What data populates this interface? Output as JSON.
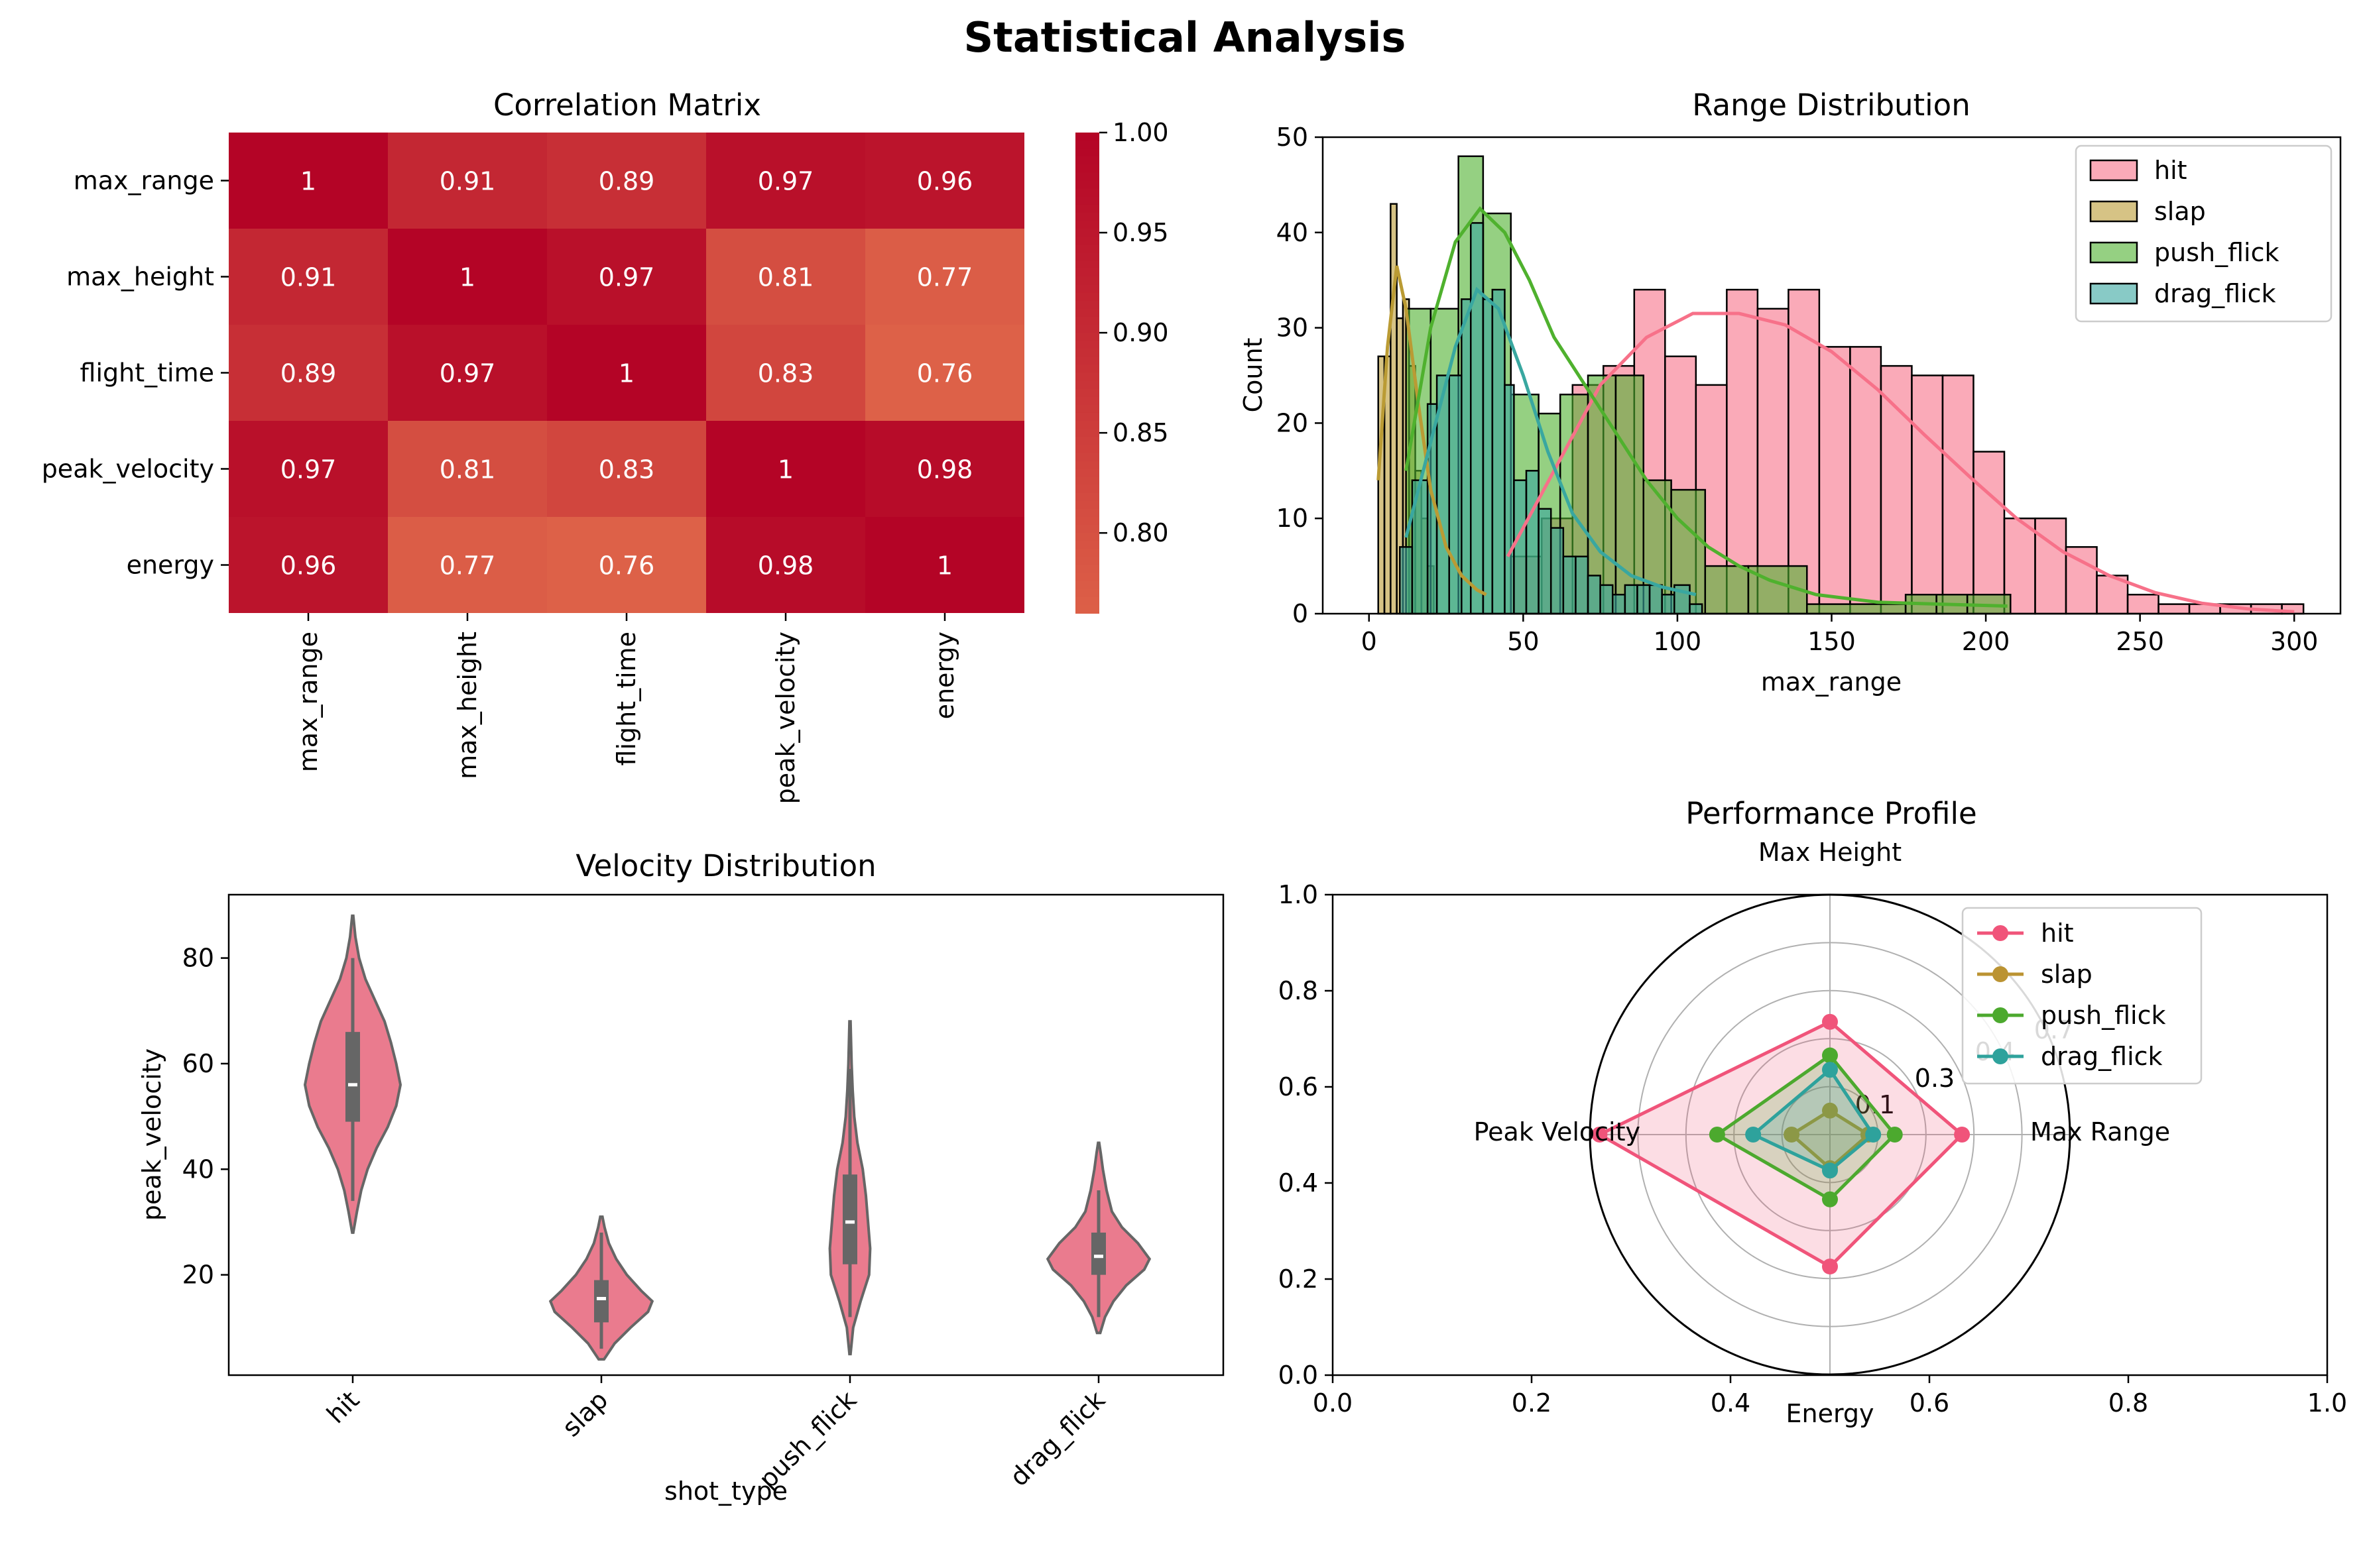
{
  "figure": {
    "suptitle": "Statistical Analysis"
  },
  "chart_data": [
    {
      "type": "heatmap",
      "title": "Correlation Matrix",
      "rows": [
        "max_range",
        "max_height",
        "flight_time",
        "peak_velocity",
        "energy"
      ],
      "cols": [
        "max_range",
        "max_height",
        "flight_time",
        "peak_velocity",
        "energy"
      ],
      "values": [
        [
          1,
          0.91,
          0.89,
          0.97,
          0.96
        ],
        [
          0.91,
          1,
          0.97,
          0.81,
          0.77
        ],
        [
          0.89,
          0.97,
          1,
          0.83,
          0.76
        ],
        [
          0.97,
          0.81,
          0.83,
          1,
          0.98
        ],
        [
          0.96,
          0.77,
          0.76,
          0.98,
          1
        ]
      ],
      "labels": [
        [
          "1",
          "0.91",
          "0.89",
          "0.97",
          "0.96"
        ],
        [
          "0.91",
          "1",
          "0.97",
          "0.81",
          "0.77"
        ],
        [
          "0.89",
          "0.97",
          "1",
          "0.83",
          "0.76"
        ],
        [
          "0.97",
          "0.81",
          "0.83",
          "1",
          "0.98"
        ],
        [
          "0.96",
          "0.77",
          "0.76",
          "0.98",
          "1"
        ]
      ],
      "colorbar": {
        "range": [
          0.76,
          1.0
        ],
        "ticks": [
          "0.80",
          "0.85",
          "0.90",
          "0.95",
          "1.00"
        ],
        "low_color": "#dd6148",
        "high_color": "#b40426"
      }
    },
    {
      "type": "histogram",
      "title": "Range Distribution",
      "xlabel": "max_range",
      "ylabel": "Count",
      "xlim": [
        -15,
        315
      ],
      "ylim": [
        0,
        50
      ],
      "xticks": [
        "0",
        "50",
        "100",
        "150",
        "200",
        "250",
        "300"
      ],
      "yticks": [
        "0",
        "10",
        "20",
        "30",
        "40",
        "50"
      ],
      "legend_position": "upper right",
      "series": [
        {
          "name": "hit",
          "color": "#f77189",
          "bins": [
            [
              46,
              56,
              6
            ],
            [
              56,
              66,
              10
            ],
            [
              66,
              76,
              24
            ],
            [
              76,
              86,
              26
            ],
            [
              86,
              96,
              34
            ],
            [
              96,
              106,
              27
            ],
            [
              106,
              116,
              24
            ],
            [
              116,
              126,
              34
            ],
            [
              126,
              136,
              32
            ],
            [
              136,
              146,
              34
            ],
            [
              146,
              156,
              28
            ],
            [
              156,
              166,
              28
            ],
            [
              166,
              176,
              26
            ],
            [
              176,
              186,
              25
            ],
            [
              186,
              196,
              25
            ],
            [
              196,
              206,
              17
            ],
            [
              206,
              216,
              10
            ],
            [
              216,
              226,
              10
            ],
            [
              226,
              236,
              7
            ],
            [
              236,
              246,
              4
            ],
            [
              246,
              256,
              2
            ],
            [
              256,
              266,
              1
            ],
            [
              266,
              276,
              1
            ],
            [
              276,
              286,
              1
            ],
            [
              286,
              296,
              1
            ],
            [
              296,
              303,
              1
            ]
          ],
          "kde": [
            [
              45,
              6
            ],
            [
              60,
              15
            ],
            [
              75,
              24
            ],
            [
              90,
              29
            ],
            [
              105,
              31.5
            ],
            [
              120,
              31.5
            ],
            [
              135,
              30.3
            ],
            [
              150,
              27.5
            ],
            [
              165,
              23.5
            ],
            [
              180,
              18.8
            ],
            [
              195,
              14.3
            ],
            [
              210,
              10
            ],
            [
              225,
              6.5
            ],
            [
              240,
              4
            ],
            [
              255,
              2.2
            ],
            [
              270,
              1.1
            ],
            [
              285,
              0.5
            ],
            [
              300,
              0.2
            ]
          ]
        },
        {
          "name": "slap",
          "color": "#ba9b34",
          "bins": [
            [
              3,
              5,
              27
            ],
            [
              5,
              7,
              27
            ],
            [
              7,
              9,
              43
            ],
            [
              9,
              11,
              31
            ],
            [
              11,
              13,
              33
            ],
            [
              13,
              15,
              26
            ],
            [
              15,
              17,
              15
            ],
            [
              17,
              19,
              10
            ],
            [
              19,
              21,
              5
            ]
          ],
          "kde": [
            [
              3,
              14
            ],
            [
              6,
              28
            ],
            [
              9,
              36.5
            ],
            [
              12,
              32
            ],
            [
              16,
              22
            ],
            [
              20,
              13
            ],
            [
              25,
              7
            ],
            [
              30,
              4
            ],
            [
              35,
              2.5
            ],
            [
              38,
              2
            ]
          ]
        },
        {
          "name": "push_flick",
          "color": "#4fb12e",
          "bins": [
            [
              12,
              20,
              32
            ],
            [
              20,
              29,
              32
            ],
            [
              29,
              37,
              48
            ],
            [
              37,
              46,
              42
            ],
            [
              46,
              55,
              23
            ],
            [
              55,
              62,
              21
            ],
            [
              62,
              71,
              23
            ],
            [
              71,
              80,
              25
            ],
            [
              80,
              89,
              25
            ],
            [
              89,
              98,
              14
            ],
            [
              98,
              109,
              13
            ],
            [
              109,
              123,
              5
            ],
            [
              123,
              142,
              5
            ],
            [
              142,
              174,
              1
            ],
            [
              174,
              184,
              2
            ],
            [
              184,
              194,
              2
            ],
            [
              194,
              208,
              2
            ]
          ],
          "kde": [
            [
              12,
              15
            ],
            [
              20,
              30
            ],
            [
              28,
              39
            ],
            [
              36,
              42.5
            ],
            [
              44,
              40
            ],
            [
              52,
              35
            ],
            [
              60,
              29
            ],
            [
              70,
              24
            ],
            [
              80,
              19
            ],
            [
              90,
              14
            ],
            [
              100,
              10
            ],
            [
              110,
              7
            ],
            [
              120,
              5
            ],
            [
              130,
              3.5
            ],
            [
              145,
              2
            ],
            [
              165,
              1.2
            ],
            [
              185,
              1
            ],
            [
              207,
              0.8
            ]
          ]
        },
        {
          "name": "drag_flick",
          "color": "#39a7a0",
          "bins": [
            [
              10,
              14,
              7
            ],
            [
              14,
              19,
              14
            ],
            [
              19,
              22,
              22
            ],
            [
              22,
              26,
              25
            ],
            [
              26,
              30,
              25
            ],
            [
              30,
              33,
              33
            ],
            [
              33,
              37,
              41
            ],
            [
              37,
              40,
              33
            ],
            [
              40,
              44,
              34
            ],
            [
              44,
              47,
              24
            ],
            [
              47,
              51,
              14
            ],
            [
              51,
              55,
              15
            ],
            [
              55,
              59,
              11
            ],
            [
              59,
              63,
              9
            ],
            [
              63,
              67,
              6
            ],
            [
              67,
              71,
              6
            ],
            [
              71,
              75,
              4
            ],
            [
              75,
              79,
              3
            ],
            [
              79,
              83,
              2
            ],
            [
              83,
              87,
              3
            ],
            [
              87,
              91,
              3
            ],
            [
              91,
              95,
              3
            ],
            [
              95,
              99,
              2
            ],
            [
              99,
              104,
              3
            ],
            [
              104,
              108,
              1
            ]
          ],
          "kde": [
            [
              12,
              8
            ],
            [
              20,
              18
            ],
            [
              28,
              28
            ],
            [
              35,
              34
            ],
            [
              42,
              32
            ],
            [
              50,
              25
            ],
            [
              58,
              17
            ],
            [
              66,
              10.5
            ],
            [
              75,
              6.5
            ],
            [
              85,
              4
            ],
            [
              95,
              2.8
            ],
            [
              106,
              2
            ]
          ]
        }
      ]
    },
    {
      "type": "violin",
      "title": "Velocity Distribution",
      "xlabel": "shot_type",
      "ylabel": "peak_velocity",
      "categories": [
        "hit",
        "slap",
        "push_flick",
        "drag_flick"
      ],
      "ylim": [
        1,
        92
      ],
      "yticks": [
        "20",
        "40",
        "60",
        "80"
      ],
      "color": "#ea7b8e",
      "stats": [
        {
          "range": [
            28,
            88
          ],
          "q1": 49,
          "median": 56,
          "q3": 66,
          "whisker": [
            34,
            80
          ],
          "profile": [
            [
              28,
              0.01
            ],
            [
              32,
              0.08
            ],
            [
              36,
              0.16
            ],
            [
              40,
              0.28
            ],
            [
              44,
              0.45
            ],
            [
              48,
              0.66
            ],
            [
              52,
              0.82
            ],
            [
              56,
              0.9
            ],
            [
              60,
              0.82
            ],
            [
              64,
              0.72
            ],
            [
              68,
              0.6
            ],
            [
              72,
              0.42
            ],
            [
              76,
              0.24
            ],
            [
              80,
              0.12
            ],
            [
              84,
              0.05
            ],
            [
              88,
              0.01
            ]
          ]
        },
        {
          "range": [
            4,
            31
          ],
          "q1": 11,
          "median": 15.5,
          "q3": 19,
          "whisker": [
            6,
            28
          ],
          "profile": [
            [
              4,
              0.05
            ],
            [
              7,
              0.25
            ],
            [
              10,
              0.55
            ],
            [
              13,
              0.88
            ],
            [
              15,
              0.96
            ],
            [
              17,
              0.75
            ],
            [
              20,
              0.48
            ],
            [
              23,
              0.28
            ],
            [
              26,
              0.14
            ],
            [
              29,
              0.06
            ],
            [
              31,
              0.02
            ]
          ]
        },
        {
          "range": [
            5,
            68
          ],
          "q1": 22,
          "median": 30,
          "q3": 39,
          "whisker": [
            12,
            59
          ],
          "profile": [
            [
              5,
              0.01
            ],
            [
              10,
              0.06
            ],
            [
              15,
              0.2
            ],
            [
              20,
              0.36
            ],
            [
              25,
              0.38
            ],
            [
              30,
              0.34
            ],
            [
              35,
              0.3
            ],
            [
              40,
              0.24
            ],
            [
              45,
              0.14
            ],
            [
              50,
              0.08
            ],
            [
              55,
              0.05
            ],
            [
              60,
              0.03
            ],
            [
              64,
              0.02
            ],
            [
              68,
              0.01
            ]
          ]
        },
        {
          "range": [
            9,
            45
          ],
          "q1": 20,
          "median": 23.5,
          "q3": 28,
          "whisker": [
            12,
            36
          ],
          "profile": [
            [
              9,
              0.03
            ],
            [
              12,
              0.12
            ],
            [
              15,
              0.28
            ],
            [
              18,
              0.52
            ],
            [
              21,
              0.86
            ],
            [
              23,
              0.96
            ],
            [
              26,
              0.74
            ],
            [
              29,
              0.44
            ],
            [
              32,
              0.25
            ],
            [
              36,
              0.15
            ],
            [
              40,
              0.08
            ],
            [
              43,
              0.04
            ],
            [
              45,
              0.01
            ]
          ]
        }
      ]
    },
    {
      "type": "radar",
      "title": "Performance Profile",
      "axes": [
        "Max Range",
        "Max Height",
        "Peak Velocity",
        "Energy"
      ],
      "rticks": [
        "0.1",
        "0.3",
        "0.4",
        "0.7"
      ],
      "outer_axes": {
        "xticks": [
          "0.0",
          "0.2",
          "0.4",
          "0.6",
          "0.8",
          "1.0"
        ],
        "yticks": [
          "0.0",
          "0.2",
          "0.4",
          "0.6",
          "0.8",
          "1.0"
        ]
      },
      "legend_position": "upper right",
      "series": [
        {
          "name": "hit",
          "color": "#f0547a",
          "values": [
            0.55,
            0.47,
            0.96,
            0.55
          ]
        },
        {
          "name": "slap",
          "color": "#bb9332",
          "values": [
            0.16,
            0.1,
            0.16,
            0.14
          ]
        },
        {
          "name": "push_flick",
          "color": "#4ca92e",
          "values": [
            0.27,
            0.33,
            0.47,
            0.27
          ]
        },
        {
          "name": "drag_flick",
          "color": "#2ea29c",
          "values": [
            0.18,
            0.27,
            0.32,
            0.15
          ]
        }
      ]
    }
  ]
}
